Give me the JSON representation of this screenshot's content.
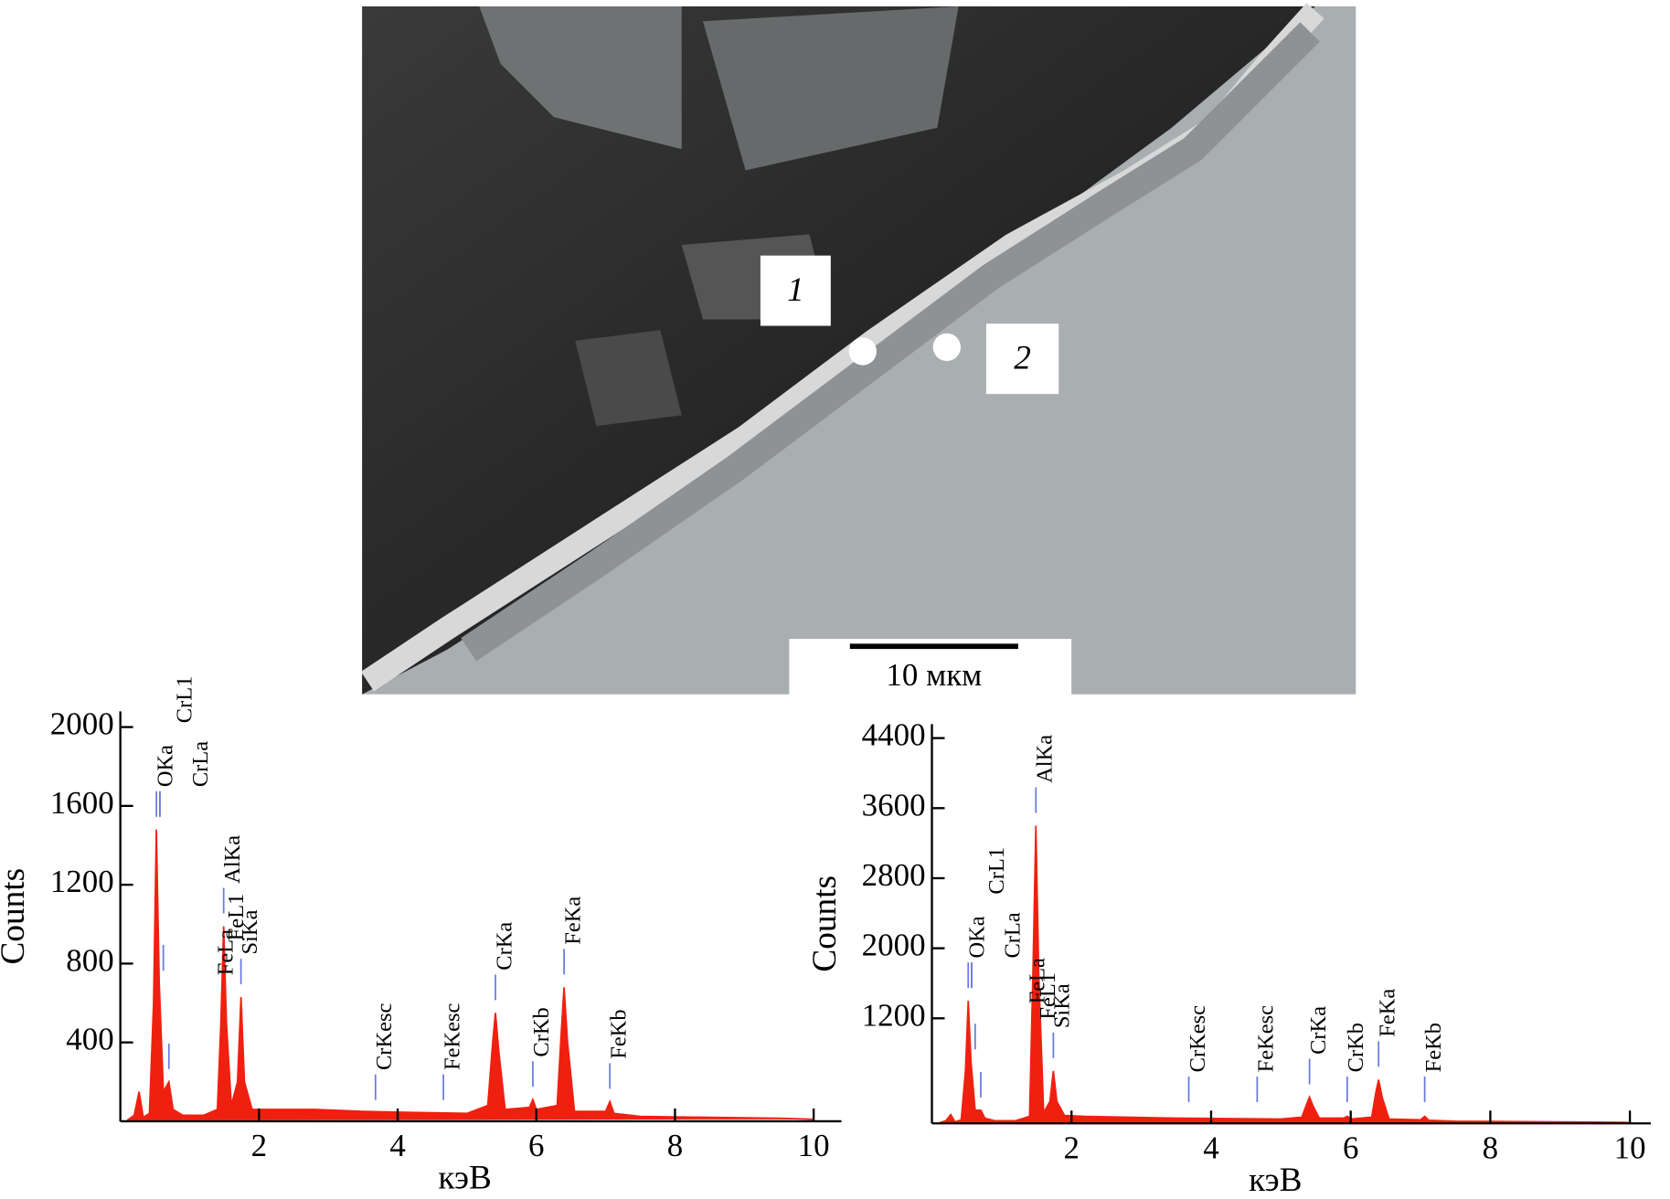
{
  "image": {
    "labels": [
      "1",
      "2"
    ],
    "scale_bar": "10 мкм"
  },
  "chart_data": [
    {
      "type": "area",
      "color": "#f02010",
      "xlabel": "кэВ",
      "ylabel": "Counts",
      "xlim": [
        0,
        10.4
      ],
      "ylim": [
        0,
        2080
      ],
      "xticks": [
        2,
        4,
        6,
        8,
        10
      ],
      "yticks": [
        400,
        800,
        1200,
        1600,
        2000
      ],
      "x": [
        0.1,
        0.2,
        0.27,
        0.33,
        0.42,
        0.48,
        0.52,
        0.56,
        0.62,
        0.7,
        0.76,
        0.9,
        1.2,
        1.4,
        1.45,
        1.49,
        1.53,
        1.6,
        1.69,
        1.74,
        1.79,
        1.9,
        2.2,
        2.8,
        3.5,
        4.2,
        5.0,
        5.3,
        5.37,
        5.41,
        5.46,
        5.55,
        5.9,
        5.95,
        6.0,
        6.3,
        6.36,
        6.4,
        6.45,
        6.55,
        7.0,
        7.06,
        7.12,
        7.5,
        8.5,
        9.5,
        10.0
      ],
      "values": [
        5,
        30,
        150,
        20,
        40,
        600,
        1480,
        700,
        150,
        200,
        60,
        30,
        30,
        60,
        500,
        990,
        500,
        80,
        200,
        630,
        200,
        60,
        60,
        60,
        50,
        45,
        40,
        80,
        400,
        550,
        350,
        60,
        70,
        110,
        60,
        80,
        450,
        680,
        400,
        50,
        50,
        100,
        40,
        25,
        20,
        15,
        10
      ],
      "annotations": [
        {
          "text": "OKa",
          "x": 0.52
        },
        {
          "text": "CrL1",
          "x": 0.57
        },
        {
          "text": "CrLa",
          "x": 0.57
        },
        {
          "text": "FeLa",
          "x": 0.7
        },
        {
          "text": "FeL1",
          "x": 0.62
        },
        {
          "text": "AlKa",
          "x": 1.49
        },
        {
          "text": "SiKa",
          "x": 1.74
        },
        {
          "text": "CrKesc",
          "x": 3.68
        },
        {
          "text": "FeKesc",
          "x": 4.66
        },
        {
          "text": "CrKa",
          "x": 5.41
        },
        {
          "text": "CrKb",
          "x": 5.95
        },
        {
          "text": "FeKa",
          "x": 6.4
        },
        {
          "text": "FeKb",
          "x": 7.06
        }
      ]
    },
    {
      "type": "area",
      "color": "#f02010",
      "xlabel": "кэВ",
      "ylabel": "Counts",
      "xlim": [
        0,
        10.3
      ],
      "ylim": [
        0,
        4560
      ],
      "xticks": [
        2,
        4,
        6,
        8,
        10
      ],
      "yticks": [
        1200,
        2000,
        2800,
        3600,
        4400
      ],
      "x": [
        0.1,
        0.2,
        0.27,
        0.33,
        0.42,
        0.48,
        0.52,
        0.56,
        0.62,
        0.7,
        0.76,
        0.9,
        1.2,
        1.4,
        1.45,
        1.49,
        1.53,
        1.6,
        1.69,
        1.74,
        1.79,
        1.9,
        2.2,
        2.8,
        3.5,
        4.2,
        5.0,
        5.3,
        5.37,
        5.41,
        5.46,
        5.55,
        5.9,
        5.95,
        6.0,
        6.3,
        6.36,
        6.4,
        6.45,
        6.55,
        7.0,
        7.06,
        7.12,
        7.5,
        8.5,
        9.5,
        10.0
      ],
      "values": [
        5,
        30,
        100,
        20,
        40,
        600,
        1400,
        700,
        150,
        150,
        60,
        30,
        30,
        80,
        1800,
        3400,
        1700,
        120,
        250,
        600,
        250,
        90,
        80,
        70,
        60,
        55,
        50,
        70,
        220,
        300,
        200,
        60,
        60,
        80,
        50,
        70,
        350,
        500,
        300,
        50,
        40,
        80,
        35,
        25,
        20,
        15,
        10
      ],
      "annotations": [
        {
          "text": "OKa",
          "x": 0.52
        },
        {
          "text": "CrL1",
          "x": 0.57
        },
        {
          "text": "CrLa",
          "x": 0.57
        },
        {
          "text": "FeLa",
          "x": 0.7
        },
        {
          "text": "FeL1",
          "x": 0.62
        },
        {
          "text": "AlKa",
          "x": 1.49
        },
        {
          "text": "SiKa",
          "x": 1.74
        },
        {
          "text": "CrKesc",
          "x": 3.68
        },
        {
          "text": "FeKesc",
          "x": 4.66
        },
        {
          "text": "CrKa",
          "x": 5.41
        },
        {
          "text": "CrKb",
          "x": 5.95
        },
        {
          "text": "FeKa",
          "x": 6.4
        },
        {
          "text": "FeKb",
          "x": 7.06
        }
      ]
    }
  ]
}
